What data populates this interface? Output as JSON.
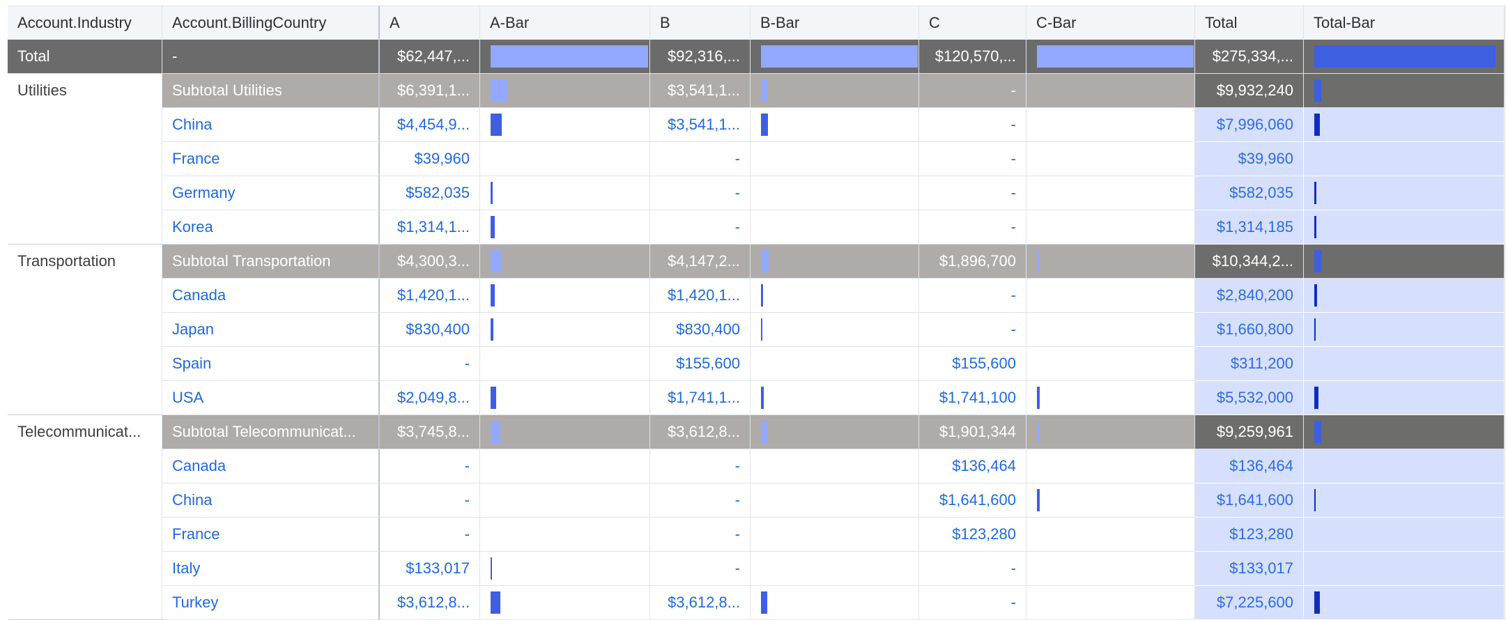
{
  "columns": [
    "Account.Industry",
    "Account.BillingCountry",
    "A",
    "A-Bar",
    "B",
    "B-Bar",
    "C",
    "C-Bar",
    "Total",
    "Total-Bar"
  ],
  "grand_total": {
    "label": "Total",
    "country": "-",
    "a": "$62,447,...",
    "b": "$92,316,...",
    "c": "$120,570,...",
    "total": "$275,334,..."
  },
  "groups": [
    {
      "industry": "Utilities",
      "subtotal": {
        "label": "Subtotal Utilities",
        "a": "$6,391,1...",
        "b": "$3,541,1...",
        "c": "-",
        "total": "$9,932,240"
      },
      "rows": [
        {
          "country": "China",
          "a": "$4,454,9...",
          "b": "$3,541,1...",
          "c": "-",
          "total": "$7,996,060"
        },
        {
          "country": "France",
          "a": "$39,960",
          "b": "-",
          "c": "-",
          "total": "$39,960"
        },
        {
          "country": "Germany",
          "a": "$582,035",
          "b": "-",
          "c": "-",
          "total": "$582,035"
        },
        {
          "country": "Korea",
          "a": "$1,314,1...",
          "b": "-",
          "c": "-",
          "total": "$1,314,185"
        }
      ]
    },
    {
      "industry": "Transportation",
      "subtotal": {
        "label": "Subtotal Transportation",
        "a": "$4,300,3...",
        "b": "$4,147,2...",
        "c": "$1,896,700",
        "total": "$10,344,2..."
      },
      "rows": [
        {
          "country": "Canada",
          "a": "$1,420,1...",
          "b": "$1,420,1...",
          "c": "-",
          "total": "$2,840,200"
        },
        {
          "country": "Japan",
          "a": "$830,400",
          "b": "$830,400",
          "c": "-",
          "total": "$1,660,800"
        },
        {
          "country": "Spain",
          "a": "-",
          "b": "$155,600",
          "c": "$155,600",
          "total": "$311,200"
        },
        {
          "country": "USA",
          "a": "$2,049,8...",
          "b": "$1,741,1...",
          "c": "$1,741,100",
          "total": "$5,532,000"
        }
      ]
    },
    {
      "industry": "Telecommunicat...",
      "subtotal": {
        "label": "Subtotal Telecommunicat...",
        "a": "$3,745,8...",
        "b": "$3,612,8...",
        "c": "$1,901,344",
        "total": "$9,259,961"
      },
      "rows": [
        {
          "country": "Canada",
          "a": "-",
          "b": "-",
          "c": "$136,464",
          "total": "$136,464"
        },
        {
          "country": "China",
          "a": "-",
          "b": "-",
          "c": "$1,641,600",
          "total": "$1,641,600"
        },
        {
          "country": "France",
          "a": "-",
          "b": "-",
          "c": "$123,280",
          "total": "$123,280"
        },
        {
          "country": "Italy",
          "a": "$133,017",
          "b": "-",
          "c": "-",
          "total": "$133,017"
        },
        {
          "country": "Turkey",
          "a": "$3,612,8...",
          "b": "$3,612,8...",
          "c": "-",
          "total": "$7,225,600"
        }
      ]
    }
  ],
  "colors": {
    "bar_dark": "#3e5fe0",
    "bar_light": "#93a8ff",
    "total_bar": "#0f2fb8",
    "total_column_bg": "#d6e0fd",
    "subtotal_bg": "#afaba8",
    "grand_total_bg": "#6b6b6b"
  }
}
